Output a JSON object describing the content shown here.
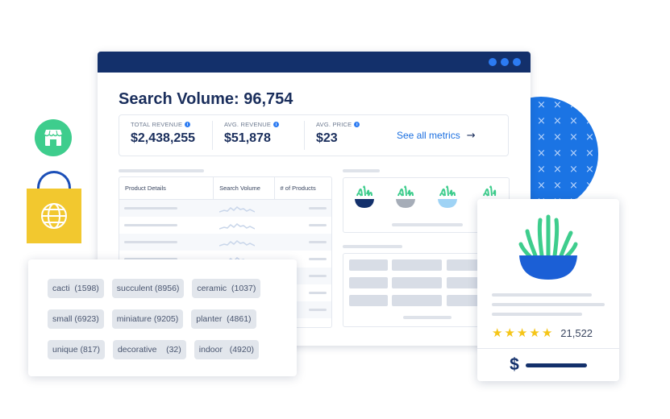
{
  "colors": {
    "navy": "#13306b",
    "accent_blue": "#1b74e4",
    "link_blue": "#1b6fe0",
    "green": "#3ecd8d",
    "yellow": "#f2c82f",
    "star": "#f5c518"
  },
  "icons": {
    "store": "store-icon",
    "bag": "shopping-bag-icon",
    "globe": "globe-icon",
    "info": "info-icon",
    "arrow": "arrow-right-icon",
    "star": "star-icon",
    "dollar": "dollar-icon"
  },
  "dashboard": {
    "title": "Search Volume: 96,754",
    "metrics": [
      {
        "label": "TOTAL REVENUE",
        "value": "$2,438,255"
      },
      {
        "label": "AVG. REVENUE",
        "value": "$51,878"
      },
      {
        "label": "AVG. PRICE",
        "value": "$23"
      }
    ],
    "see_all": "See all metrics",
    "arrow": "→",
    "table_headers": [
      "Product Details",
      "Search Volume",
      "# of Products"
    ]
  },
  "tags": [
    [
      "cacti  (1598)",
      "succulent (8956)",
      "ceramic  (1037)"
    ],
    [
      "small (6923)",
      "miniature (9205)",
      "planter  (4861)"
    ],
    [
      "unique (817)",
      "decorative    (32)",
      "indoor   (4920)"
    ]
  ],
  "product": {
    "rating": 5,
    "review_count": "21,522",
    "currency_symbol": "$"
  }
}
